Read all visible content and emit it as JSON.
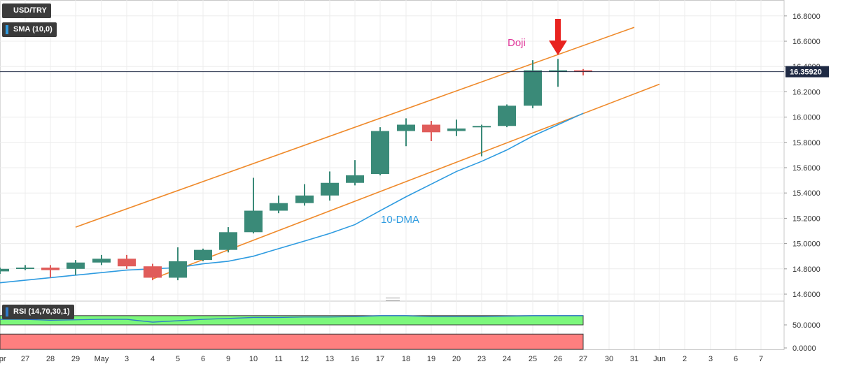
{
  "chart_data": [
    {
      "type": "candlestick",
      "title": "USD/TRY",
      "x_ticks": [
        "Apr",
        "27",
        "28",
        "29",
        "May",
        "3",
        "4",
        "5",
        "6",
        "9",
        "10",
        "11",
        "12",
        "13",
        "16",
        "17",
        "18",
        "19",
        "20",
        "23",
        "24",
        "25",
        "26",
        "27",
        "30",
        "31",
        "Jun",
        "2",
        "3",
        "6",
        "7"
      ],
      "y_ticks": [
        "14.6000",
        "14.8000",
        "15.0000",
        "15.2000",
        "15.4000",
        "15.6000",
        "15.8000",
        "16.0000",
        "16.2000",
        "16.4000",
        "16.6000",
        "16.8000"
      ],
      "ylim": [
        14.56,
        16.9
      ],
      "candles": [
        {
          "date": "Apr 26",
          "open": 14.78,
          "high": 14.81,
          "low": 14.76,
          "close": 14.8
        },
        {
          "date": "27",
          "open": 14.8,
          "high": 14.83,
          "low": 14.79,
          "close": 14.81
        },
        {
          "date": "28",
          "open": 14.81,
          "high": 14.83,
          "low": 14.73,
          "close": 14.79
        },
        {
          "date": "29",
          "open": 14.8,
          "high": 14.87,
          "low": 14.75,
          "close": 14.85
        },
        {
          "date": "May 2",
          "open": 14.85,
          "high": 14.91,
          "low": 14.83,
          "close": 14.88
        },
        {
          "date": "3",
          "open": 14.88,
          "high": 14.91,
          "low": 14.8,
          "close": 14.82
        },
        {
          "date": "4",
          "open": 14.82,
          "high": 14.84,
          "low": 14.71,
          "close": 14.73
        },
        {
          "date": "5",
          "open": 14.73,
          "high": 14.97,
          "low": 14.71,
          "close": 14.86
        },
        {
          "date": "6",
          "open": 14.87,
          "high": 14.96,
          "low": 14.86,
          "close": 14.95
        },
        {
          "date": "9",
          "open": 14.95,
          "high": 15.13,
          "low": 14.93,
          "close": 15.09
        },
        {
          "date": "10",
          "open": 15.09,
          "high": 15.52,
          "low": 15.08,
          "close": 15.26
        },
        {
          "date": "11",
          "open": 15.26,
          "high": 15.38,
          "low": 15.24,
          "close": 15.32
        },
        {
          "date": "12",
          "open": 15.32,
          "high": 15.47,
          "low": 15.3,
          "close": 15.38
        },
        {
          "date": "13",
          "open": 15.38,
          "high": 15.57,
          "low": 15.34,
          "close": 15.48
        },
        {
          "date": "16",
          "open": 15.48,
          "high": 15.66,
          "low": 15.46,
          "close": 15.54
        },
        {
          "date": "17",
          "open": 15.55,
          "high": 15.92,
          "low": 15.54,
          "close": 15.89
        },
        {
          "date": "18",
          "open": 15.89,
          "high": 15.99,
          "low": 15.77,
          "close": 15.94
        },
        {
          "date": "19",
          "open": 15.94,
          "high": 15.97,
          "low": 15.81,
          "close": 15.88
        },
        {
          "date": "20",
          "open": 15.89,
          "high": 15.98,
          "low": 15.85,
          "close": 15.91
        },
        {
          "date": "23",
          "open": 15.92,
          "high": 15.94,
          "low": 15.69,
          "close": 15.93
        },
        {
          "date": "24",
          "open": 15.93,
          "high": 16.1,
          "low": 15.92,
          "close": 16.09
        },
        {
          "date": "25",
          "open": 16.09,
          "high": 16.45,
          "low": 16.07,
          "close": 16.37
        },
        {
          "date": "26",
          "open": 16.36,
          "high": 16.46,
          "low": 16.24,
          "close": 16.37
        },
        {
          "date": "27",
          "open": 16.37,
          "high": 16.38,
          "low": 16.33,
          "close": 16.359
        }
      ],
      "sma": {
        "label": "SMA (10,0)",
        "annotation": "10-DMA",
        "color": "#2e9be0",
        "values": [
          14.69,
          14.71,
          14.73,
          14.75,
          14.77,
          14.79,
          14.8,
          14.81,
          14.84,
          14.86,
          14.9,
          14.96,
          15.02,
          15.08,
          15.15,
          15.26,
          15.37,
          15.47,
          15.57,
          15.65,
          15.74,
          15.85,
          15.94,
          16.03
        ]
      },
      "channel": {
        "color": "#ef8a2b",
        "upper": {
          "x": [
            3.0,
            25.0
          ],
          "y": [
            15.13,
            16.71
          ]
        },
        "lower": {
          "x": [
            6.0,
            26.0
          ],
          "y": [
            14.72,
            16.26
          ]
        }
      },
      "last_price": {
        "label": "16.35920",
        "value": 16.3592
      },
      "annotations": [
        {
          "text": "Doji",
          "color": "#e0399a"
        }
      ],
      "colors": {
        "up": "#3a8a78",
        "down": "#e05c5a",
        "arrow": "#e8231f"
      }
    },
    {
      "type": "line",
      "title": "RSI (14,70,30,1)",
      "y_ticks": [
        "0.0000",
        "50.0000"
      ],
      "ylim": [
        0,
        100
      ],
      "overbought": 70,
      "oversold": 30,
      "values": [
        62,
        62,
        60,
        61,
        62,
        62,
        56,
        59,
        62,
        64,
        66,
        66,
        67,
        67,
        68,
        70,
        70,
        68,
        68,
        68,
        69,
        70,
        70,
        70
      ],
      "colors": {
        "line": "#2e7ac8",
        "overbought": "#7cf77c",
        "oversold": "#ff7f7f"
      }
    }
  ]
}
